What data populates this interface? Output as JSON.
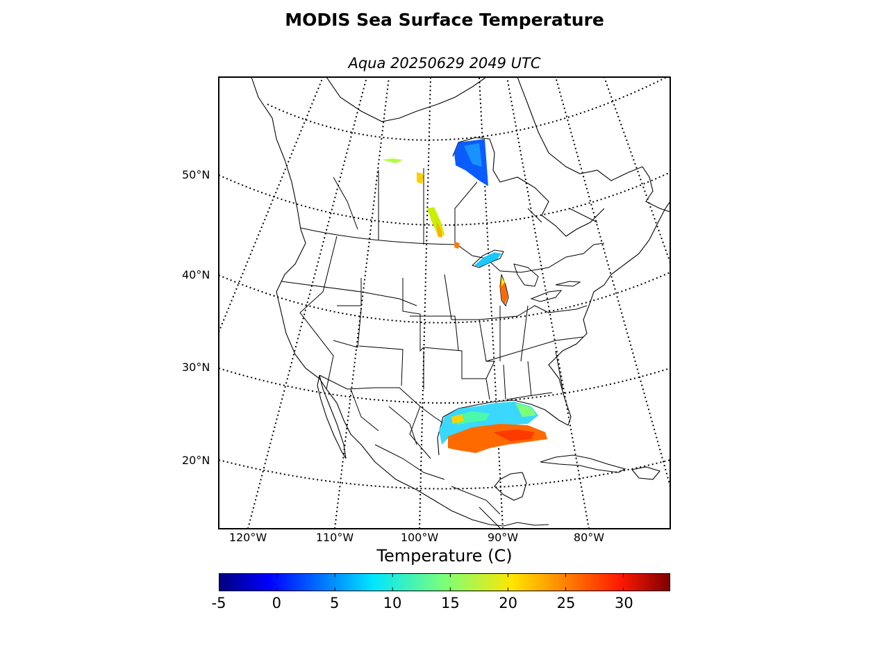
{
  "title": "MODIS Sea Surface Temperature",
  "subtitle": "Aqua 20250629 2049 UTC",
  "map": {
    "projection": "lambert-conformal",
    "parallels": [
      "20°N",
      "30°N",
      "40°N",
      "50°N"
    ],
    "meridians": [
      "120°W",
      "110°W",
      "100°W",
      "90°W",
      "80°W"
    ],
    "graticule_style": "dotted",
    "coastline_color": "#000000",
    "background_color": "#ffffff"
  },
  "sst_patches": [
    {
      "region": "Hudson Bay",
      "temp_c": 2
    },
    {
      "region": "Lake Superior",
      "temp_c": 9
    },
    {
      "region": "Lake Michigan",
      "temp_c": 24
    },
    {
      "region": "Lake Winnipeg",
      "temp_c": 18
    },
    {
      "region": "Gulf of Mexico north",
      "temp_c": 12
    },
    {
      "region": "Gulf of Mexico south",
      "temp_c": 29
    }
  ],
  "colorbar": {
    "label": "Temperature (C)",
    "min": -5,
    "max": 34,
    "colormap": "jet",
    "ticks": [
      "-5",
      "0",
      "5",
      "10",
      "15",
      "20",
      "25",
      "30"
    ],
    "tick_values": [
      -5,
      0,
      5,
      10,
      15,
      20,
      25,
      30
    ]
  }
}
